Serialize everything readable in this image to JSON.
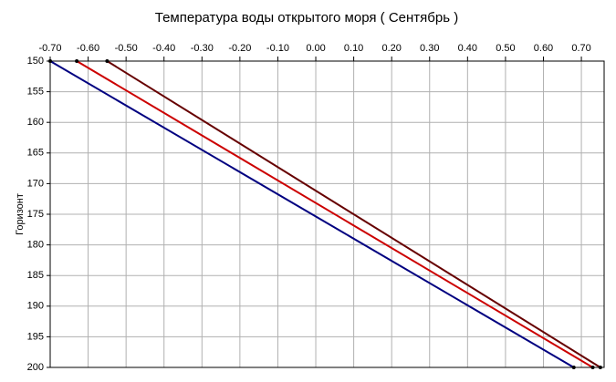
{
  "chart_data": {
    "type": "line",
    "title": "Температура воды открытого моря    ( Сентябрь )",
    "ylabel": "Горизонт",
    "xlim": [
      -0.7,
      0.76
    ],
    "xticks": [
      {
        "value": -0.7,
        "label": "-0.70"
      },
      {
        "value": -0.6,
        "label": "-0.60"
      },
      {
        "value": -0.5,
        "label": "-0.50"
      },
      {
        "value": -0.4,
        "label": "-0.40"
      },
      {
        "value": -0.3,
        "label": "-0.30"
      },
      {
        "value": -0.2,
        "label": "-0.20"
      },
      {
        "value": -0.1,
        "label": "-0.10"
      },
      {
        "value": 0,
        "label": "0.00"
      },
      {
        "value": 0.1,
        "label": "0.10"
      },
      {
        "value": 0.2,
        "label": "0.20"
      },
      {
        "value": 0.3,
        "label": "0.30"
      },
      {
        "value": 0.4,
        "label": "0.40"
      },
      {
        "value": 0.5,
        "label": "0.50"
      },
      {
        "value": 0.6,
        "label": "0.60"
      },
      {
        "value": 0.7,
        "label": "0.70"
      }
    ],
    "ylim": [
      150,
      200
    ],
    "yticks": [
      150,
      155,
      160,
      165,
      170,
      175,
      180,
      185,
      190,
      195,
      200
    ],
    "y_inverted": true,
    "grid": true,
    "series": [
      {
        "color": "#000080",
        "x": [
          -0.7,
          0.68
        ],
        "values": [
          150,
          200
        ]
      },
      {
        "color": "#cc0000",
        "x": [
          -0.63,
          0.73
        ],
        "values": [
          150,
          200
        ]
      },
      {
        "color": "#660000",
        "x": [
          -0.55,
          0.75
        ],
        "values": [
          150,
          200
        ]
      }
    ]
  }
}
